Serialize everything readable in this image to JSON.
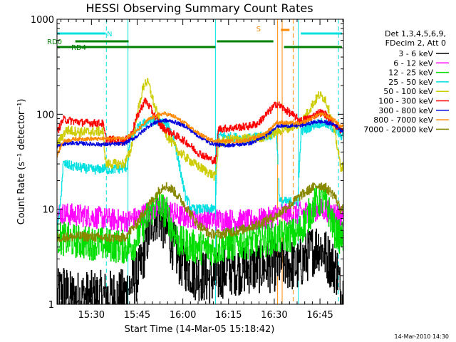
{
  "chart_data": {
    "type": "line",
    "title": "HESSI Observing Summary Count Rates",
    "xlabel": "Start Time (14-Mar-05 15:18:42)",
    "ylabel": "Count Rate (s⁻¹ detector⁻¹)",
    "y_scale": "log",
    "ylim": [
      1,
      1000
    ],
    "xlim_minutes": [
      0,
      94
    ],
    "x_tick_labels": [
      "15:30",
      "15:45",
      "16:00",
      "16:15",
      "16:30",
      "16:45"
    ],
    "y_tick_labels": [
      "1",
      "10",
      "100",
      "1000"
    ],
    "footer_date": "14-Mar-2010 14:30",
    "info": [
      "Det 1,3,4,5,6,9,",
      "FDecim 2, Att 0"
    ],
    "flags": [
      {
        "label": "N",
        "color": "#00e0e0",
        "segments": [
          [
            0,
            16
          ],
          [
            80,
            93.5
          ]
        ]
      },
      {
        "label": "RD0",
        "color": "#008000",
        "segments": [
          [
            6,
            23.5
          ],
          [
            52.5,
            71
          ]
        ]
      },
      {
        "label": "RD4",
        "color": "#008000",
        "segments": [
          [
            0,
            52
          ],
          [
            74.5,
            93.5
          ]
        ]
      },
      {
        "label": "S",
        "color": "#ff8800",
        "segments": [
          [
            73.5,
            76.3
          ]
        ]
      }
    ],
    "vlines": [
      {
        "t": 16.2,
        "color": "#00e0e0",
        "style": "dash"
      },
      {
        "t": 23.3,
        "color": "#00e0e0",
        "style": "solid"
      },
      {
        "t": 52.0,
        "color": "#00e0e0",
        "style": "solid"
      },
      {
        "t": 72.4,
        "color": "#ff8800",
        "style": "solid"
      },
      {
        "t": 73.9,
        "color": "#ff8800",
        "style": "solid"
      },
      {
        "t": 77.5,
        "color": "#ff8800",
        "style": "dash"
      },
      {
        "t": 79.2,
        "color": "#00e0e0",
        "style": "solid"
      },
      {
        "t": 92.4,
        "color": "#00e0e0",
        "style": "dash"
      }
    ],
    "series": [
      {
        "name": "3 - 6 keV",
        "color": "#000000",
        "noise": 0.28,
        "points": [
          [
            0,
            1.2
          ],
          [
            2,
            1.5
          ],
          [
            4,
            1.2
          ],
          [
            15,
            1.2
          ],
          [
            22,
            1.25
          ],
          [
            27,
            2.2
          ],
          [
            31,
            7.5
          ],
          [
            33,
            9
          ],
          [
            36,
            6
          ],
          [
            40,
            3
          ],
          [
            45,
            2.1
          ],
          [
            52,
            1.8
          ],
          [
            55,
            2.3
          ],
          [
            62,
            2.4
          ],
          [
            70,
            2.5
          ],
          [
            72,
            2.6
          ],
          [
            74,
            2.7
          ],
          [
            79,
            2.5
          ],
          [
            83,
            3.5
          ],
          [
            86,
            4.2
          ],
          [
            89,
            3
          ],
          [
            92,
            2.2
          ],
          [
            93,
            1.3
          ]
        ],
        "breaks": [
          23.3,
          52.0,
          72.5,
          79.2
        ]
      },
      {
        "name": "6 - 12 keV",
        "color": "#ff00ff",
        "noise": 0.12,
        "points": [
          [
            0,
            9
          ],
          [
            10,
            8.5
          ],
          [
            15,
            8
          ],
          [
            22,
            7.5
          ],
          [
            27,
            8.2
          ],
          [
            31,
            10
          ],
          [
            33,
            11
          ],
          [
            36,
            10
          ],
          [
            40,
            8.5
          ],
          [
            50,
            8
          ],
          [
            52,
            7.8
          ],
          [
            62,
            7.5
          ],
          [
            70,
            8
          ],
          [
            72,
            9
          ],
          [
            79,
            9
          ],
          [
            82,
            9.5
          ],
          [
            86,
            10
          ],
          [
            90,
            9.5
          ],
          [
            93,
            8.5
          ]
        ],
        "breaks": [
          23.3,
          52.0,
          72.5,
          79.2
        ]
      },
      {
        "name": "12 - 25 keV",
        "color": "#00dd00",
        "noise": 0.18,
        "points": [
          [
            0,
            5
          ],
          [
            8,
            4.5
          ],
          [
            15,
            4.3
          ],
          [
            22,
            4
          ],
          [
            25,
            4.2
          ],
          [
            28,
            6.5
          ],
          [
            31,
            10
          ],
          [
            33,
            11.5
          ],
          [
            36,
            9
          ],
          [
            38,
            6
          ],
          [
            40,
            4.5
          ],
          [
            45,
            4
          ],
          [
            52,
            3.8
          ],
          [
            55,
            4.2
          ],
          [
            62,
            4.5
          ],
          [
            70,
            4.8
          ],
          [
            72,
            5
          ],
          [
            79,
            5.5
          ],
          [
            82,
            8
          ],
          [
            85,
            12
          ],
          [
            87,
            12.5
          ],
          [
            89,
            10
          ],
          [
            91,
            6
          ],
          [
            93,
            5
          ]
        ],
        "breaks": [
          23.3,
          52.0,
          72.5,
          79.2
        ]
      },
      {
        "name": "25 - 50 keV",
        "color": "#00e0e0",
        "noise": 0.05,
        "points": [
          [
            0,
            6
          ],
          [
            1,
            11
          ],
          [
            2,
            30
          ],
          [
            6,
            28
          ],
          [
            12,
            26
          ],
          [
            16,
            27
          ],
          [
            16.5,
            26
          ],
          [
            22,
            27
          ],
          [
            23,
            28
          ],
          [
            24,
            55
          ],
          [
            26,
            70
          ],
          [
            28,
            78
          ],
          [
            30,
            85
          ],
          [
            33,
            85
          ],
          [
            36,
            78
          ],
          [
            38,
            60
          ],
          [
            40,
            30
          ],
          [
            42,
            14
          ],
          [
            44,
            10
          ],
          [
            52,
            10
          ],
          [
            52.5,
            60
          ],
          [
            62,
            55
          ],
          [
            70,
            60
          ],
          [
            72,
            65
          ],
          [
            73,
            12
          ],
          [
            79,
            12
          ],
          [
            80,
            65
          ],
          [
            85,
            80
          ],
          [
            88,
            80
          ],
          [
            91,
            70
          ],
          [
            93,
            60
          ]
        ],
        "breaks": [
          72.5,
          79.2
        ]
      },
      {
        "name": "50 - 100 keV",
        "color": "#cccc00",
        "noise": 0.05,
        "points": [
          [
            0,
            48
          ],
          [
            3,
            68
          ],
          [
            8,
            65
          ],
          [
            15,
            66
          ],
          [
            16,
            30
          ],
          [
            22,
            30
          ],
          [
            24,
            40
          ],
          [
            26,
            90
          ],
          [
            28,
            180
          ],
          [
            29,
            220
          ],
          [
            30,
            210
          ],
          [
            32,
            120
          ],
          [
            34,
            80
          ],
          [
            36,
            60
          ],
          [
            40,
            40
          ],
          [
            45,
            30
          ],
          [
            50,
            24
          ],
          [
            52,
            22
          ],
          [
            53,
            50
          ],
          [
            58,
            55
          ],
          [
            63,
            55
          ],
          [
            68,
            58
          ],
          [
            72,
            65
          ],
          [
            80,
            80
          ],
          [
            84,
            130
          ],
          [
            86,
            160
          ],
          [
            88,
            145
          ],
          [
            90,
            90
          ],
          [
            92,
            45
          ],
          [
            93,
            28
          ]
        ],
        "breaks": [
          72.5,
          79.2
        ]
      },
      {
        "name": "100 - 300 keV",
        "color": "#ff0000",
        "noise": 0.04,
        "points": [
          [
            0,
            65
          ],
          [
            2,
            88
          ],
          [
            8,
            82
          ],
          [
            15,
            80
          ],
          [
            16,
            55
          ],
          [
            22,
            52
          ],
          [
            24,
            58
          ],
          [
            26,
            90
          ],
          [
            28,
            125
          ],
          [
            29,
            140
          ],
          [
            31,
            110
          ],
          [
            34,
            75
          ],
          [
            38,
            62
          ],
          [
            42,
            52
          ],
          [
            46,
            40
          ],
          [
            50,
            34
          ],
          [
            52,
            32
          ],
          [
            53,
            70
          ],
          [
            58,
            72
          ],
          [
            63,
            75
          ],
          [
            66,
            80
          ],
          [
            68,
            95
          ],
          [
            70,
            110
          ],
          [
            72,
            130
          ],
          [
            80,
            85
          ],
          [
            84,
            95
          ],
          [
            86,
            105
          ],
          [
            88,
            100
          ],
          [
            90,
            85
          ],
          [
            93,
            68
          ]
        ],
        "breaks": [
          72.5,
          79.2
        ]
      },
      {
        "name": "300 - 800 keV",
        "color": "#0000dd",
        "noise": 0.02,
        "points": [
          [
            0,
            46
          ],
          [
            4,
            50
          ],
          [
            15,
            48
          ],
          [
            22,
            49
          ],
          [
            26,
            58
          ],
          [
            30,
            75
          ],
          [
            33,
            84
          ],
          [
            35,
            86
          ],
          [
            38,
            84
          ],
          [
            42,
            75
          ],
          [
            46,
            60
          ],
          [
            50,
            50
          ],
          [
            54,
            47
          ],
          [
            60,
            48
          ],
          [
            64,
            50
          ],
          [
            68,
            58
          ],
          [
            70,
            65
          ],
          [
            72,
            75
          ],
          [
            80,
            76
          ],
          [
            84,
            82
          ],
          [
            86,
            84
          ],
          [
            88,
            82
          ],
          [
            91,
            78
          ],
          [
            93,
            68
          ]
        ],
        "breaks": [
          72.5,
          79.2
        ]
      },
      {
        "name": "800 - 7000 keV",
        "color": "#ff8800",
        "noise": 0.02,
        "points": [
          [
            0,
            37
          ],
          [
            2,
            52
          ],
          [
            6,
            55
          ],
          [
            15,
            55
          ],
          [
            22,
            56
          ],
          [
            26,
            66
          ],
          [
            30,
            88
          ],
          [
            33,
            98
          ],
          [
            35,
            102
          ],
          [
            38,
            96
          ],
          [
            42,
            80
          ],
          [
            46,
            64
          ],
          [
            50,
            54
          ],
          [
            54,
            52
          ],
          [
            60,
            52
          ],
          [
            64,
            55
          ],
          [
            68,
            62
          ],
          [
            70,
            70
          ],
          [
            72,
            82
          ],
          [
            80,
            80
          ],
          [
            84,
            92
          ],
          [
            86,
            100
          ],
          [
            88,
            98
          ],
          [
            91,
            86
          ],
          [
            93,
            75
          ]
        ],
        "breaks": [
          72.5,
          79.2
        ]
      },
      {
        "name": "7000 - 20000 keV",
        "color": "#888800",
        "noise": 0.05,
        "points": [
          [
            0,
            5
          ],
          [
            8,
            5.2
          ],
          [
            15,
            5
          ],
          [
            22,
            5
          ],
          [
            26,
            7
          ],
          [
            30,
            11
          ],
          [
            33,
            15
          ],
          [
            35,
            18
          ],
          [
            38,
            16
          ],
          [
            42,
            11
          ],
          [
            46,
            7
          ],
          [
            50,
            5.5
          ],
          [
            54,
            5.5
          ],
          [
            60,
            6
          ],
          [
            66,
            7
          ],
          [
            70,
            8
          ],
          [
            72,
            8.5
          ],
          [
            80,
            14
          ],
          [
            84,
            17
          ],
          [
            86,
            18
          ],
          [
            88,
            17
          ],
          [
            91,
            14
          ],
          [
            93,
            10
          ]
        ],
        "breaks": [
          23.3,
          52.0,
          72.5,
          79.2
        ]
      }
    ]
  }
}
